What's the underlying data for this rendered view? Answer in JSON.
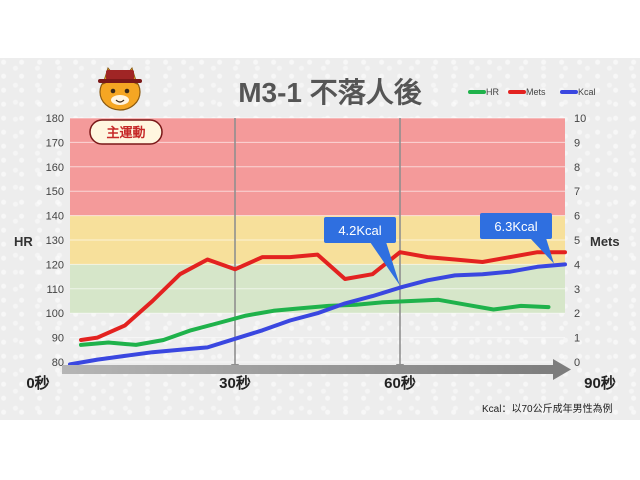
{
  "chart_data": {
    "type": "line",
    "title": "M3-1 不落人後",
    "badge": "主運動",
    "y_left": {
      "label": "HR",
      "range": [
        80,
        180
      ],
      "ticks": [
        80,
        90,
        100,
        110,
        120,
        130,
        140,
        150,
        160,
        170,
        180
      ]
    },
    "y_right": {
      "label": "Mets",
      "range": [
        0,
        10
      ],
      "ticks": [
        0,
        1,
        2,
        3,
        4,
        5,
        6,
        7,
        8,
        9,
        10
      ]
    },
    "x_range": [
      0,
      90
    ],
    "time_labels": [
      {
        "t": 0,
        "label": "0秒"
      },
      {
        "t": 30,
        "label": "30秒"
      },
      {
        "t": 60,
        "label": "60秒"
      },
      {
        "t": 90,
        "label": "90秒"
      }
    ],
    "vlines": [
      30,
      60
    ],
    "zones": [
      {
        "from": 100,
        "to": 120,
        "color": "#d6e6c9"
      },
      {
        "from": 120,
        "to": 140,
        "color": "#f7e09b"
      },
      {
        "from": 140,
        "to": 180,
        "color": "#f49a9a"
      }
    ],
    "legend": [
      {
        "name": "HR",
        "color": "#1fb24b"
      },
      {
        "name": "Mets",
        "color": "#e32220"
      },
      {
        "name": "Kcal",
        "color": "#3a47e0"
      }
    ],
    "legend_position": "top-right",
    "series": [
      {
        "name": "HR",
        "axis": "left",
        "color": "#1fb24b",
        "x": [
          2,
          7,
          12,
          17,
          22,
          27,
          32,
          37,
          42,
          47,
          52,
          57,
          62,
          67,
          72,
          77,
          82,
          87
        ],
        "y": [
          87,
          88,
          87,
          89,
          93,
          96,
          99,
          101,
          102,
          103,
          103.5,
          104.5,
          105,
          105.5,
          103.5,
          101.5,
          103,
          102.5
        ]
      },
      {
        "name": "Mets",
        "axis": "right",
        "color": "#e32220",
        "x": [
          2,
          5,
          10,
          15,
          20,
          25,
          30,
          35,
          40,
          45,
          50,
          55,
          60,
          65,
          70,
          75,
          80,
          85,
          90
        ],
        "y": [
          0.9,
          1.0,
          1.5,
          2.5,
          3.6,
          4.2,
          3.8,
          4.3,
          4.3,
          4.4,
          3.4,
          3.6,
          4.5,
          4.3,
          4.2,
          4.1,
          4.3,
          4.5,
          4.5
        ]
      },
      {
        "name": "Kcal",
        "axis": "right",
        "color": "#3a47e0",
        "x": [
          0,
          5,
          10,
          15,
          20,
          25,
          30,
          35,
          40,
          45,
          50,
          55,
          60,
          65,
          70,
          75,
          80,
          85,
          90
        ],
        "y": [
          -0.1,
          0.1,
          0.25,
          0.4,
          0.5,
          0.6,
          0.95,
          1.3,
          1.7,
          2.0,
          2.4,
          2.7,
          3.05,
          3.35,
          3.55,
          3.6,
          3.7,
          3.9,
          4.0
        ]
      }
    ],
    "annotations": [
      {
        "text": "4.2Kcal",
        "at_x": 60,
        "at_y": 3.05
      },
      {
        "text": "6.3Kcal",
        "at_x": 88,
        "at_y": 3.95
      }
    ],
    "footnote": "Kcal：以70公斤成年男性為例",
    "grid": true
  }
}
